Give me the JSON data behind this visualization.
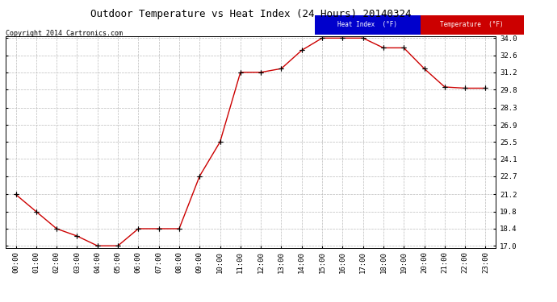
{
  "title": "Outdoor Temperature vs Heat Index (24 Hours) 20140324",
  "copyright": "Copyright 2014 Cartronics.com",
  "background_color": "#ffffff",
  "plot_bg_color": "#ffffff",
  "grid_color": "#bbbbbb",
  "hours": [
    "00:00",
    "01:00",
    "02:00",
    "03:00",
    "04:00",
    "05:00",
    "06:00",
    "07:00",
    "08:00",
    "09:00",
    "10:00",
    "11:00",
    "12:00",
    "13:00",
    "14:00",
    "15:00",
    "16:00",
    "17:00",
    "18:00",
    "19:00",
    "20:00",
    "21:00",
    "22:00",
    "23:00"
  ],
  "temperature": [
    21.2,
    19.8,
    18.4,
    17.8,
    17.0,
    17.0,
    18.4,
    18.4,
    18.4,
    22.7,
    25.5,
    31.2,
    31.2,
    31.5,
    33.0,
    34.0,
    34.0,
    34.0,
    33.2,
    33.2,
    31.5,
    30.0,
    29.9,
    29.9
  ],
  "heat_index": [
    21.2,
    19.8,
    18.4,
    17.8,
    17.0,
    17.0,
    18.4,
    18.4,
    18.4,
    22.7,
    25.5,
    31.2,
    31.2,
    31.5,
    33.0,
    34.0,
    34.0,
    34.0,
    33.2,
    33.2,
    31.5,
    30.0,
    29.9,
    29.9
  ],
  "temp_color": "#cc0000",
  "heat_index_color": "#000000",
  "ylim_min": 17.0,
  "ylim_max": 34.0,
  "yticks": [
    17.0,
    18.4,
    19.8,
    21.2,
    22.7,
    24.1,
    25.5,
    26.9,
    28.3,
    29.8,
    31.2,
    32.6,
    34.0
  ],
  "legend_heat_bg": "#0000cc",
  "legend_temp_bg": "#cc0000",
  "legend_heat_text": "Heat Index  (°F)",
  "legend_temp_text": "Temperature  (°F)"
}
